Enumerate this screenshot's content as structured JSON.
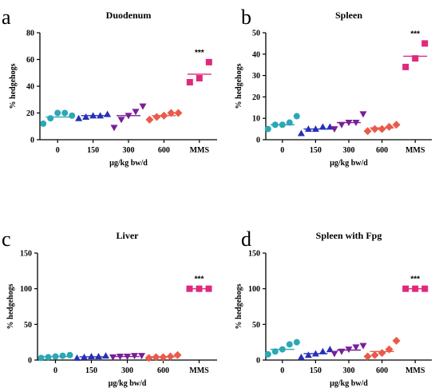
{
  "chart_data": [
    {
      "type": "scatter",
      "panel": "a",
      "title": "Duodenum",
      "xlabel": "µg/kg bw/d",
      "ylabel": "% hedgehogs",
      "ylim": [
        0,
        80
      ],
      "yticks": [
        "0",
        "20",
        "40",
        "60",
        "80"
      ],
      "categories": [
        "0",
        "150",
        "300",
        "600",
        "MMS"
      ],
      "groups": [
        {
          "category": "0",
          "marker": "circle",
          "color": "#2aa8b5",
          "values": [
            12,
            16,
            20,
            20,
            18
          ],
          "mean": 17
        },
        {
          "category": "150",
          "marker": "triangle-up",
          "color": "#2730b8",
          "values": [
            16,
            17,
            18,
            18,
            19
          ],
          "mean": 18
        },
        {
          "category": "300",
          "marker": "triangle-down",
          "color": "#7a1f98",
          "values": [
            9,
            15,
            18,
            21,
            25
          ],
          "mean": 18
        },
        {
          "category": "600",
          "marker": "diamond",
          "color": "#ea5a4a",
          "values": [
            15,
            17,
            18,
            20,
            20
          ],
          "mean": 18
        },
        {
          "category": "MMS",
          "marker": "square",
          "color": "#e0287c",
          "values": [
            43,
            46,
            58
          ],
          "mean": 49
        }
      ],
      "annotation": {
        "category": "MMS",
        "text": "***"
      }
    },
    {
      "type": "scatter",
      "panel": "b",
      "title": "Spleen",
      "xlabel": "µg/kg bw/d",
      "ylabel": "% hedgehogs",
      "ylim": [
        0,
        50
      ],
      "yticks": [
        "0",
        "10",
        "20",
        "30",
        "40",
        "50"
      ],
      "categories": [
        "0",
        "150",
        "300",
        "600",
        "MMS"
      ],
      "groups": [
        {
          "category": "0",
          "marker": "circle",
          "color": "#2aa8b5",
          "values": [
            5,
            7,
            7,
            8,
            11
          ],
          "mean": 7
        },
        {
          "category": "150",
          "marker": "triangle-up",
          "color": "#2730b8",
          "values": [
            3,
            5,
            5,
            6,
            6
          ],
          "mean": 5
        },
        {
          "category": "300",
          "marker": "triangle-down",
          "color": "#7a1f98",
          "values": [
            5,
            7,
            8,
            8,
            12
          ],
          "mean": 8
        },
        {
          "category": "600",
          "marker": "diamond",
          "color": "#ea5a4a",
          "values": [
            4,
            5,
            5,
            6,
            7
          ],
          "mean": 5.5
        },
        {
          "category": "MMS",
          "marker": "square",
          "color": "#e0287c",
          "values": [
            34,
            38,
            45
          ],
          "mean": 39
        }
      ],
      "annotation": {
        "category": "MMS",
        "text": "***"
      }
    },
    {
      "type": "scatter",
      "panel": "c",
      "title": "Liver",
      "xlabel": "µg/kg bw/d",
      "ylabel": "% hedgehogs",
      "ylim": [
        0,
        150
      ],
      "yticks": [
        "0",
        "50",
        "100",
        "150"
      ],
      "categories": [
        "0",
        "150",
        "300",
        "600",
        "MMS"
      ],
      "groups": [
        {
          "category": "0",
          "marker": "circle",
          "color": "#2aa8b5",
          "values": [
            3,
            4,
            5,
            6,
            7
          ],
          "mean": 5
        },
        {
          "category": "150",
          "marker": "triangle-up",
          "color": "#2730b8",
          "values": [
            3,
            4,
            5,
            5,
            6
          ],
          "mean": 4.5
        },
        {
          "category": "300",
          "marker": "triangle-down",
          "color": "#7a1f98",
          "values": [
            4,
            5,
            5,
            6,
            6
          ],
          "mean": 5
        },
        {
          "category": "600",
          "marker": "diamond",
          "color": "#ea5a4a",
          "values": [
            3,
            4,
            4,
            5,
            7
          ],
          "mean": 4.5
        },
        {
          "category": "MMS",
          "marker": "square",
          "color": "#e0287c",
          "values": [
            100,
            100,
            100
          ],
          "mean": 100
        }
      ],
      "annotation": {
        "category": "MMS",
        "text": "***"
      }
    },
    {
      "type": "scatter",
      "panel": "d",
      "title": "Spleen with Fpg",
      "xlabel": "µg/kg bw/d",
      "ylabel": "% hedgehogs",
      "ylim": [
        0,
        150
      ],
      "yticks": [
        "0",
        "50",
        "100",
        "150"
      ],
      "categories": [
        "0",
        "150",
        "300",
        "600",
        "MMS"
      ],
      "groups": [
        {
          "category": "0",
          "marker": "circle",
          "color": "#2aa8b5",
          "values": [
            8,
            12,
            15,
            22,
            25
          ],
          "mean": 15
        },
        {
          "category": "150",
          "marker": "triangle-up",
          "color": "#2730b8",
          "values": [
            4,
            7,
            9,
            12,
            15
          ],
          "mean": 9
        },
        {
          "category": "300",
          "marker": "triangle-down",
          "color": "#7a1f98",
          "values": [
            9,
            12,
            15,
            18,
            20
          ],
          "mean": 14
        },
        {
          "category": "600",
          "marker": "diamond",
          "color": "#ea5a4a",
          "values": [
            5,
            7,
            10,
            15,
            27
          ],
          "mean": 12
        },
        {
          "category": "MMS",
          "marker": "square",
          "color": "#e0287c",
          "values": [
            100,
            100,
            100
          ],
          "mean": 100
        }
      ],
      "annotation": {
        "category": "MMS",
        "text": "***"
      }
    }
  ]
}
